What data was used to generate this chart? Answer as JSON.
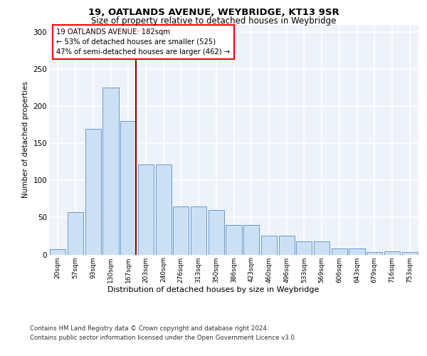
{
  "title1": "19, OATLANDS AVENUE, WEYBRIDGE, KT13 9SR",
  "title2": "Size of property relative to detached houses in Weybridge",
  "xlabel": "Distribution of detached houses by size in Weybridge",
  "ylabel": "Number of detached properties",
  "bar_color": "#cce0f5",
  "bar_edge_color": "#6699cc",
  "categories": [
    "20sqm",
    "57sqm",
    "93sqm",
    "130sqm",
    "167sqm",
    "203sqm",
    "240sqm",
    "276sqm",
    "313sqm",
    "350sqm",
    "386sqm",
    "423sqm",
    "460sqm",
    "496sqm",
    "533sqm",
    "569sqm",
    "606sqm",
    "643sqm",
    "679sqm",
    "716sqm",
    "753sqm"
  ],
  "values": [
    7,
    57,
    170,
    225,
    180,
    122,
    122,
    65,
    65,
    60,
    40,
    40,
    25,
    25,
    18,
    18,
    8,
    8,
    3,
    4,
    3
  ],
  "ylim": [
    0,
    310
  ],
  "yticks": [
    0,
    50,
    100,
    150,
    200,
    250,
    300
  ],
  "annotation_text": "19 OATLANDS AVENUE: 182sqm\n← 53% of detached houses are smaller (525)\n47% of semi-detached houses are larger (462) →",
  "footer1": "Contains HM Land Registry data © Crown copyright and database right 2024.",
  "footer2": "Contains public sector information licensed under the Open Government Licence v3.0.",
  "background_color": "#eef3fb",
  "grid_color": "#ffffff"
}
